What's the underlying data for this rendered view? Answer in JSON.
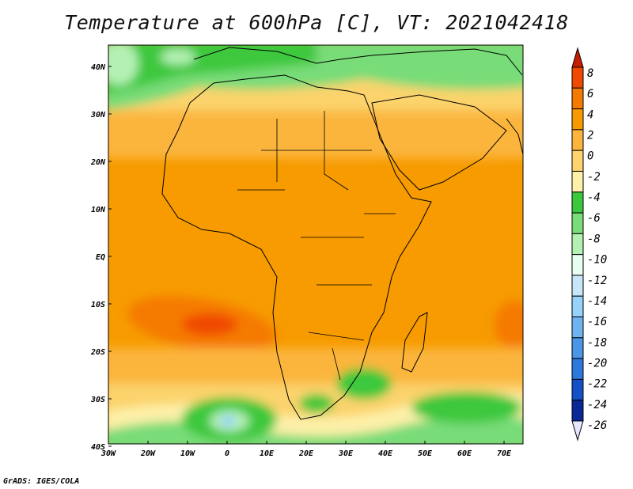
{
  "title": "Temperature at 600hPa [C], VT: 2021042418",
  "credit": "GrADS: IGES/COLA",
  "lat_labels": [
    "40N",
    "30N",
    "20N",
    "10N",
    "EQ",
    "10S",
    "20S",
    "30S",
    "40S"
  ],
  "lon_labels": [
    "30W",
    "20W",
    "10W",
    "0",
    "10E",
    "20E",
    "30E",
    "40E",
    "50E",
    "60E",
    "70E"
  ],
  "colorbar": {
    "labels": [
      "8",
      "6",
      "4",
      "2",
      "0",
      "-2",
      "-4",
      "-6",
      "-8",
      "-10",
      "-12",
      "-14",
      "-16",
      "-18",
      "-20",
      "-22",
      "-24",
      "-26"
    ],
    "colors": [
      "#c81e00",
      "#f04a00",
      "#f57a00",
      "#f79b00",
      "#fbb53c",
      "#fcd36c",
      "#fdf0a8",
      "#3cc83c",
      "#78dc78",
      "#b4f0b4",
      "#e6fff0",
      "#c8e6fa",
      "#96d2fa",
      "#6eb4f0",
      "#4b96e6",
      "#2d78dc",
      "#1450c8",
      "#0a2896"
    ]
  },
  "colors": {
    "land_border": "#000000",
    "background": "#ffffff"
  }
}
